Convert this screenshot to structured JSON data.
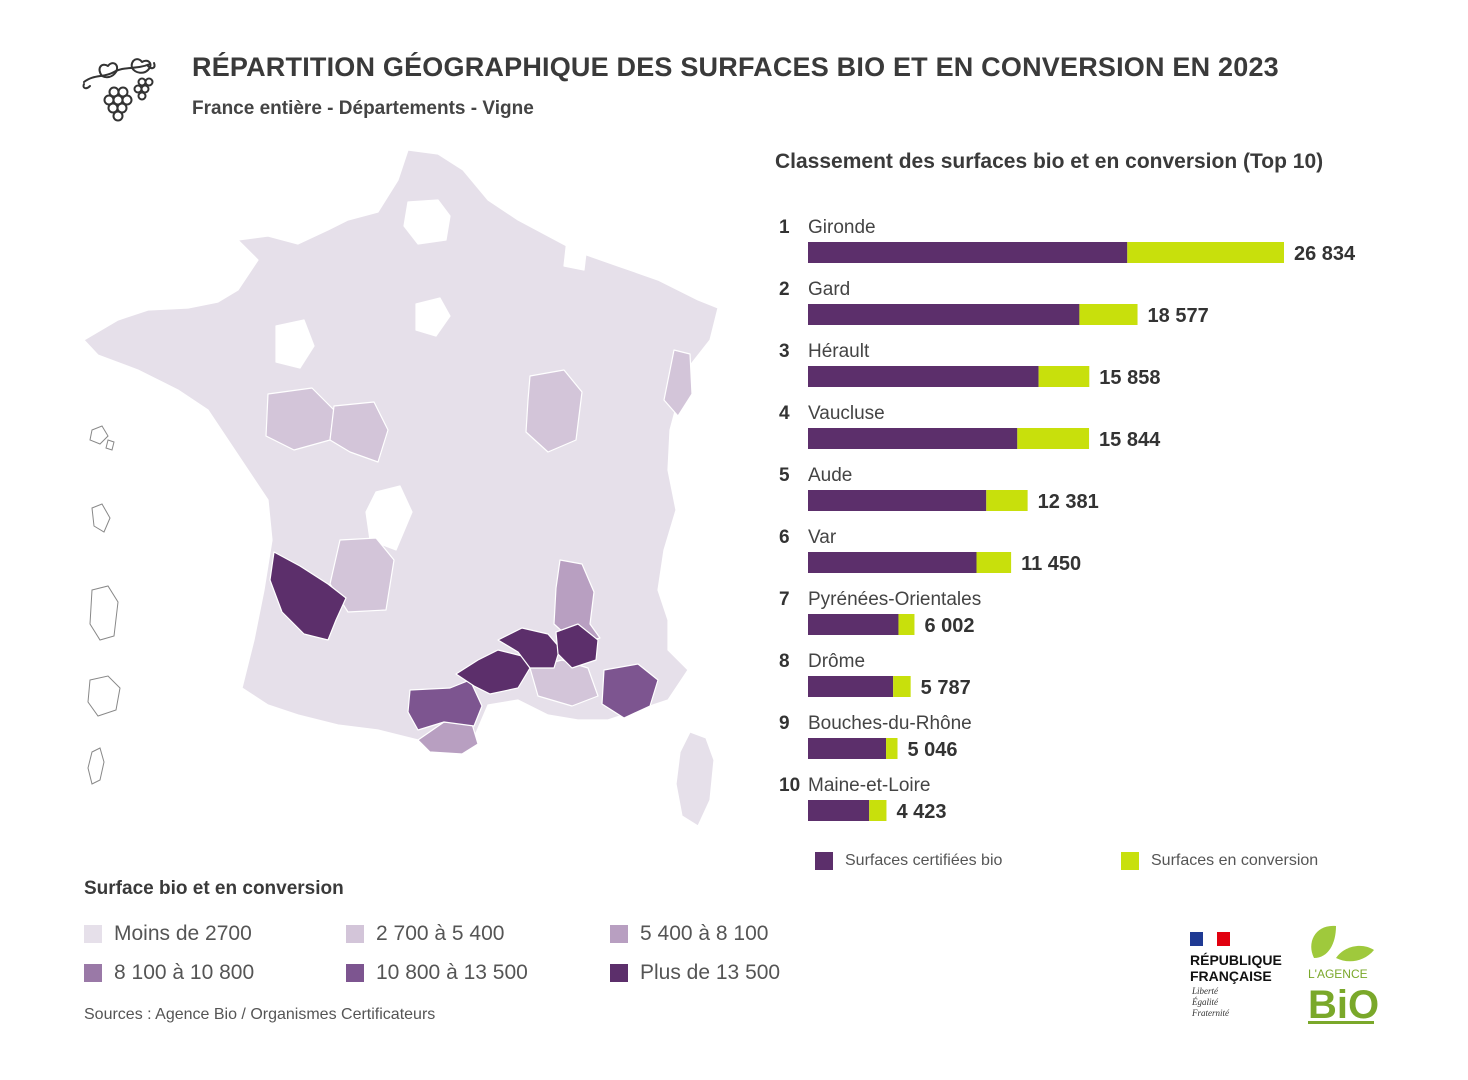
{
  "header": {
    "title": "RÉPARTITION GÉOGRAPHIQUE DES SURFACES BIO ET EN CONVERSION EN 2023",
    "subtitle": "France entière - Départements - Vigne",
    "icon": "vine-grape-icon"
  },
  "colors": {
    "bio": "#5c2f6b",
    "conversion": "#c8e00c",
    "class_1": "#e6e0ea",
    "class_2": "#d3c5d9",
    "class_3": "#b89fc1",
    "class_4": "#9a79a7",
    "class_5": "#7d5590",
    "class_6": "#5c2f6b"
  },
  "chart_data": [
    {
      "type": "bar",
      "orientation": "horizontal",
      "stacked": true,
      "title": "Classement des surfaces bio et en conversion (Top 10)",
      "ranks": [
        "1",
        "2",
        "3",
        "4",
        "5",
        "6",
        "7",
        "8",
        "9",
        "10"
      ],
      "categories": [
        "Gironde",
        "Gard",
        "Hérault",
        "Vaucluse",
        "Aude",
        "Var",
        "Pyrénées-Orientales",
        "Drôme",
        "Bouches-du-Rhône",
        "Maine-et-Loire"
      ],
      "totals": [
        26834,
        18577,
        15858,
        15844,
        12381,
        11450,
        6002,
        5787,
        5046,
        4423
      ],
      "total_labels": [
        "26 834",
        "18 577",
        "15 858",
        "15 844",
        "12 381",
        "11 450",
        "6 002",
        "5 787",
        "5 046",
        "4 423"
      ],
      "series": [
        {
          "name": "Surfaces certifiées bio",
          "values": [
            18000,
            15300,
            13000,
            11800,
            10050,
            9500,
            5100,
            4800,
            4400,
            3450
          ]
        },
        {
          "name": "Surfaces en conversion",
          "values": [
            8834,
            3277,
            2858,
            4044,
            2331,
            1950,
            902,
            987,
            646,
            973
          ]
        }
      ],
      "xlim": [
        0,
        26834
      ],
      "legend_position": "bottom"
    },
    {
      "type": "heatmap",
      "subtype": "choropleth-map",
      "title": "Surface bio et en conversion",
      "classes": [
        "Moins de 2700",
        "2 700 à 5 400",
        "5 400 à 8 100",
        "8 100 à 10 800",
        "10 800 à 13 500",
        "Plus de 13 500"
      ],
      "highlighted_departments": [
        {
          "name": "Gironde",
          "class": "Plus de 13 500"
        },
        {
          "name": "Gard",
          "class": "Plus de 13 500"
        },
        {
          "name": "Hérault",
          "class": "Plus de 13 500"
        },
        {
          "name": "Vaucluse",
          "class": "Plus de 13 500"
        },
        {
          "name": "Aude",
          "class": "10 800 à 13 500"
        },
        {
          "name": "Var",
          "class": "10 800 à 13 500"
        },
        {
          "name": "Pyrénées-Orientales",
          "class": "5 400 à 8 100"
        },
        {
          "name": "Drôme",
          "class": "5 400 à 8 100"
        },
        {
          "name": "Maine-et-Loire",
          "class": "2 700 à 5 400"
        }
      ],
      "legend_position": "bottom-left"
    }
  ],
  "sources": "Sources : Agence Bio / Organismes Certificateurs",
  "logos": {
    "republique": {
      "line1": "RÉPUBLIQUE",
      "line2": "FRANÇAISE",
      "motto": [
        "Liberté",
        "Égalité",
        "Fraternité"
      ]
    },
    "agence_bio": {
      "top": "L'AGENCE",
      "main": "BiO"
    }
  }
}
